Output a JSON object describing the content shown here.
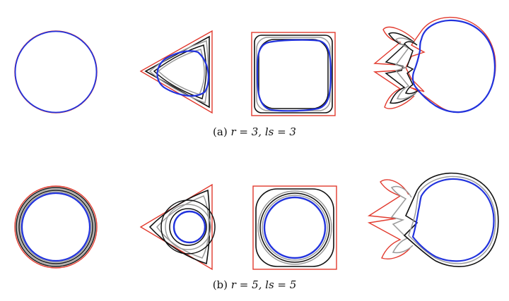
{
  "captions": [
    {
      "label": "(a)",
      "equation": "r = 3, ls = 3"
    },
    {
      "label": "(b)",
      "equation": "r = 5, ls = 5"
    }
  ],
  "colors": {
    "initial": "#e23a2e",
    "intermediate_dark": "#111111",
    "intermediate_light": "#9a9a9a",
    "final": "#2233dd"
  },
  "rows": [
    {
      "shapes": [
        "circle",
        "triangle",
        "square",
        "mushroom"
      ],
      "evolution_steps": 3
    },
    {
      "shapes": [
        "circle",
        "triangle",
        "square",
        "mushroom"
      ],
      "evolution_steps": 5
    }
  ]
}
